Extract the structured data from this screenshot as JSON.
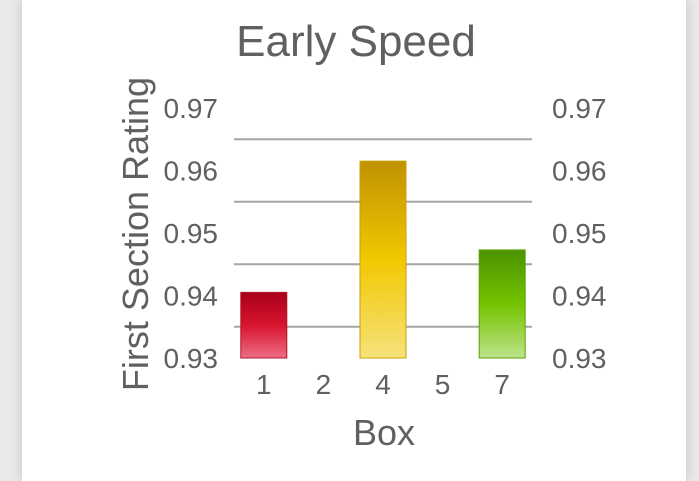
{
  "chart_data": {
    "type": "bar",
    "title": "Early Speed",
    "xlabel": "Box",
    "ylabel": "First Section Rating",
    "categories": [
      "1",
      "2",
      "4",
      "5",
      "7"
    ],
    "values": [
      0.9405,
      null,
      0.9615,
      null,
      0.9473
    ],
    "ylim": [
      0.93,
      0.97
    ],
    "yticks": [
      "0.93",
      "0.94",
      "0.95",
      "0.96",
      "0.97"
    ],
    "y2ticks": [
      "0.93",
      "0.94",
      "0.95",
      "0.96",
      "0.97"
    ],
    "grid": true,
    "legend": "none",
    "colors": [
      {
        "top": "#a8001a",
        "mid": "#d8142f",
        "bottom": "#ec6d86",
        "edge": "#b31426"
      },
      null,
      {
        "top": "#bf9200",
        "mid": "#f2c800",
        "bottom": "#f6e27c",
        "edge": "#c9a200"
      },
      null,
      {
        "top": "#4a9300",
        "mid": "#74c300",
        "bottom": "#bde38a",
        "edge": "#5aa400"
      }
    ]
  }
}
